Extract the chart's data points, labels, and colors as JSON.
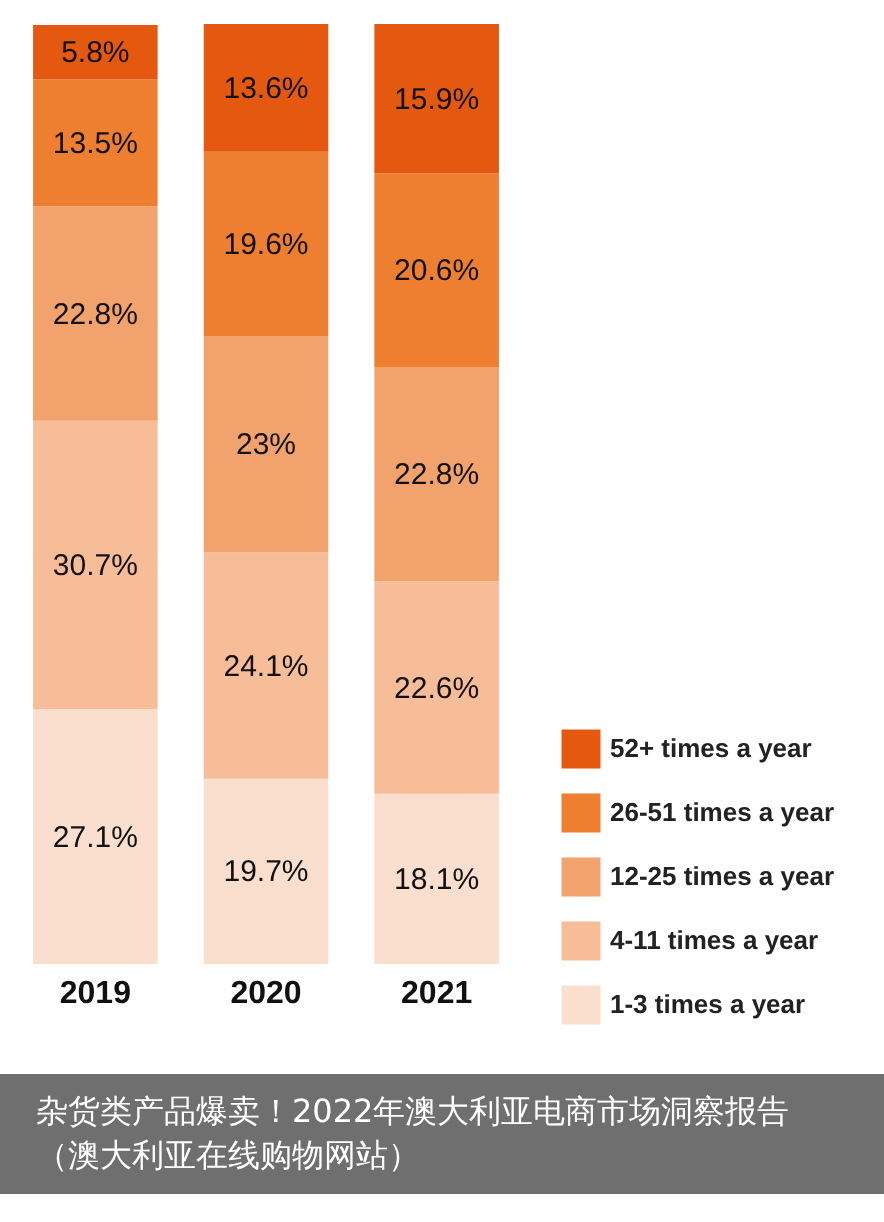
{
  "chart_data": {
    "type": "bar",
    "stacked": true,
    "legend": "bottom right",
    "categories": [
      "2019",
      "2020",
      "2021"
    ],
    "series": [
      {
        "name": "1-3 times a year",
        "color": "#fadfcf",
        "values": [
          27.1,
          19.7,
          18.1
        ],
        "value_labels": [
          "27.1%",
          "19.7%",
          "18.1%"
        ]
      },
      {
        "name": "4-11 times a year",
        "color": "#f6bd98",
        "values": [
          30.7,
          24.1,
          22.6
        ],
        "value_labels": [
          "30.7%",
          "24.1%",
          "22.6%"
        ]
      },
      {
        "name": "12-25 times a year",
        "color": "#f2a36d",
        "values": [
          22.8,
          23,
          22.8
        ],
        "value_labels": [
          "22.8%",
          "23%",
          "22.8%"
        ]
      },
      {
        "name": "26-51 times a year",
        "color": "#ee7f30",
        "values": [
          13.5,
          19.6,
          20.6
        ],
        "value_labels": [
          "13.5%",
          "19.6%",
          "20.6%"
        ]
      },
      {
        "name": "52+ times a year",
        "color": "#e5580f",
        "values": [
          5.8,
          13.6,
          15.9
        ],
        "value_labels": [
          "5.8%",
          "13.6%",
          "15.9%"
        ]
      }
    ],
    "annotations": [
      "杂货类产品爆卖！2022年澳大利亚电商市场洞察报告（澳大利亚在线购物网站）"
    ]
  }
}
